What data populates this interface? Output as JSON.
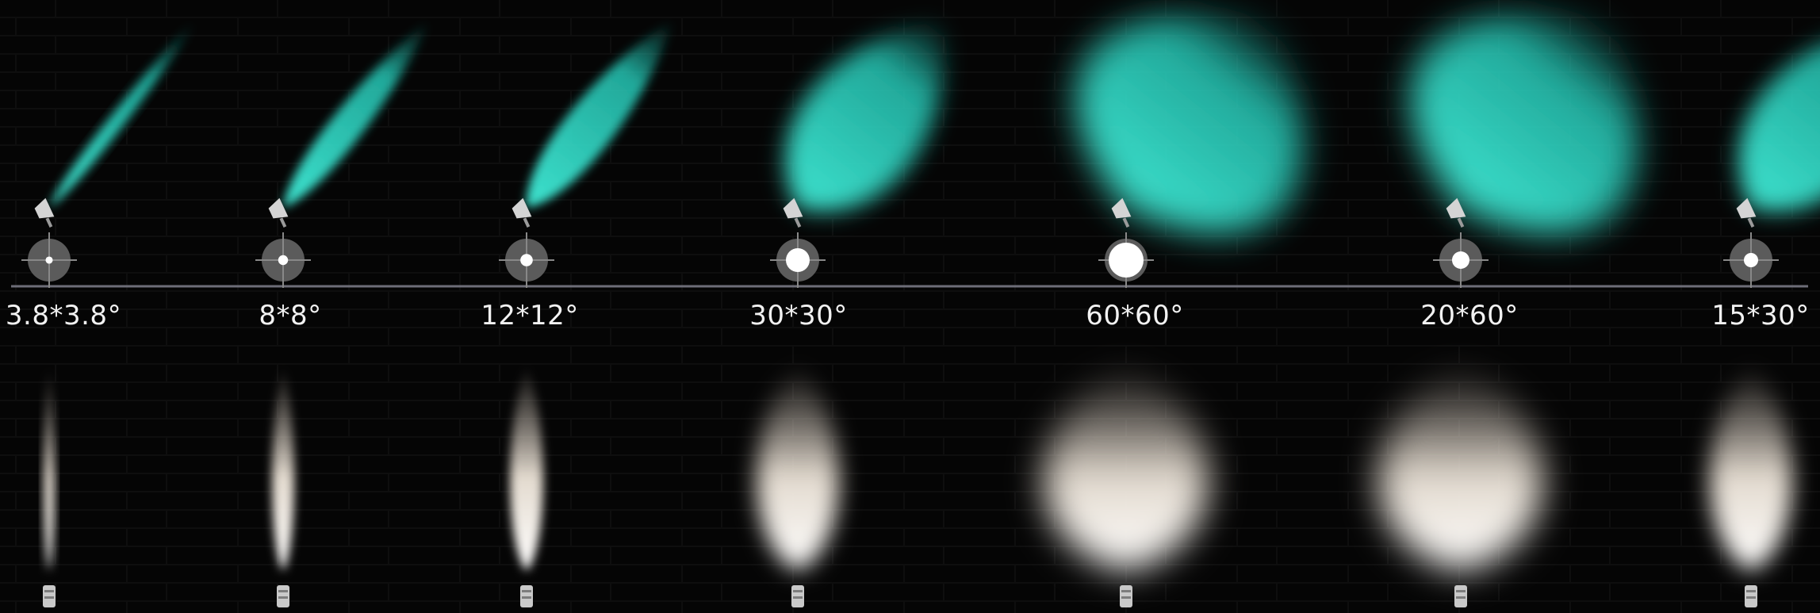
{
  "beam_angles": [
    {
      "label": "3.8*3.8°",
      "h_deg": 3.8,
      "v_deg": 3.8
    },
    {
      "label": "8*8°",
      "h_deg": 8,
      "v_deg": 8
    },
    {
      "label": "12*12°",
      "h_deg": 12,
      "v_deg": 12
    },
    {
      "label": "30*30°",
      "h_deg": 30,
      "v_deg": 30
    },
    {
      "label": "60*60°",
      "h_deg": 60,
      "v_deg": 60
    },
    {
      "label": "20*60°",
      "h_deg": 20,
      "v_deg": 60
    },
    {
      "label": "15*30°",
      "h_deg": 15,
      "v_deg": 30
    }
  ],
  "colors": {
    "background": "#000000",
    "teal_beam": "#2fd6c4",
    "warm_beam": "#f3ebe1",
    "axis_line": "#6d6d78",
    "label_text": "#f2f2f2",
    "fixture": "#c9c9c9"
  },
  "icons": [
    "spotlight-fixture-icon",
    "beam-spot-target-icon",
    "uplight-fixture-icon"
  ]
}
